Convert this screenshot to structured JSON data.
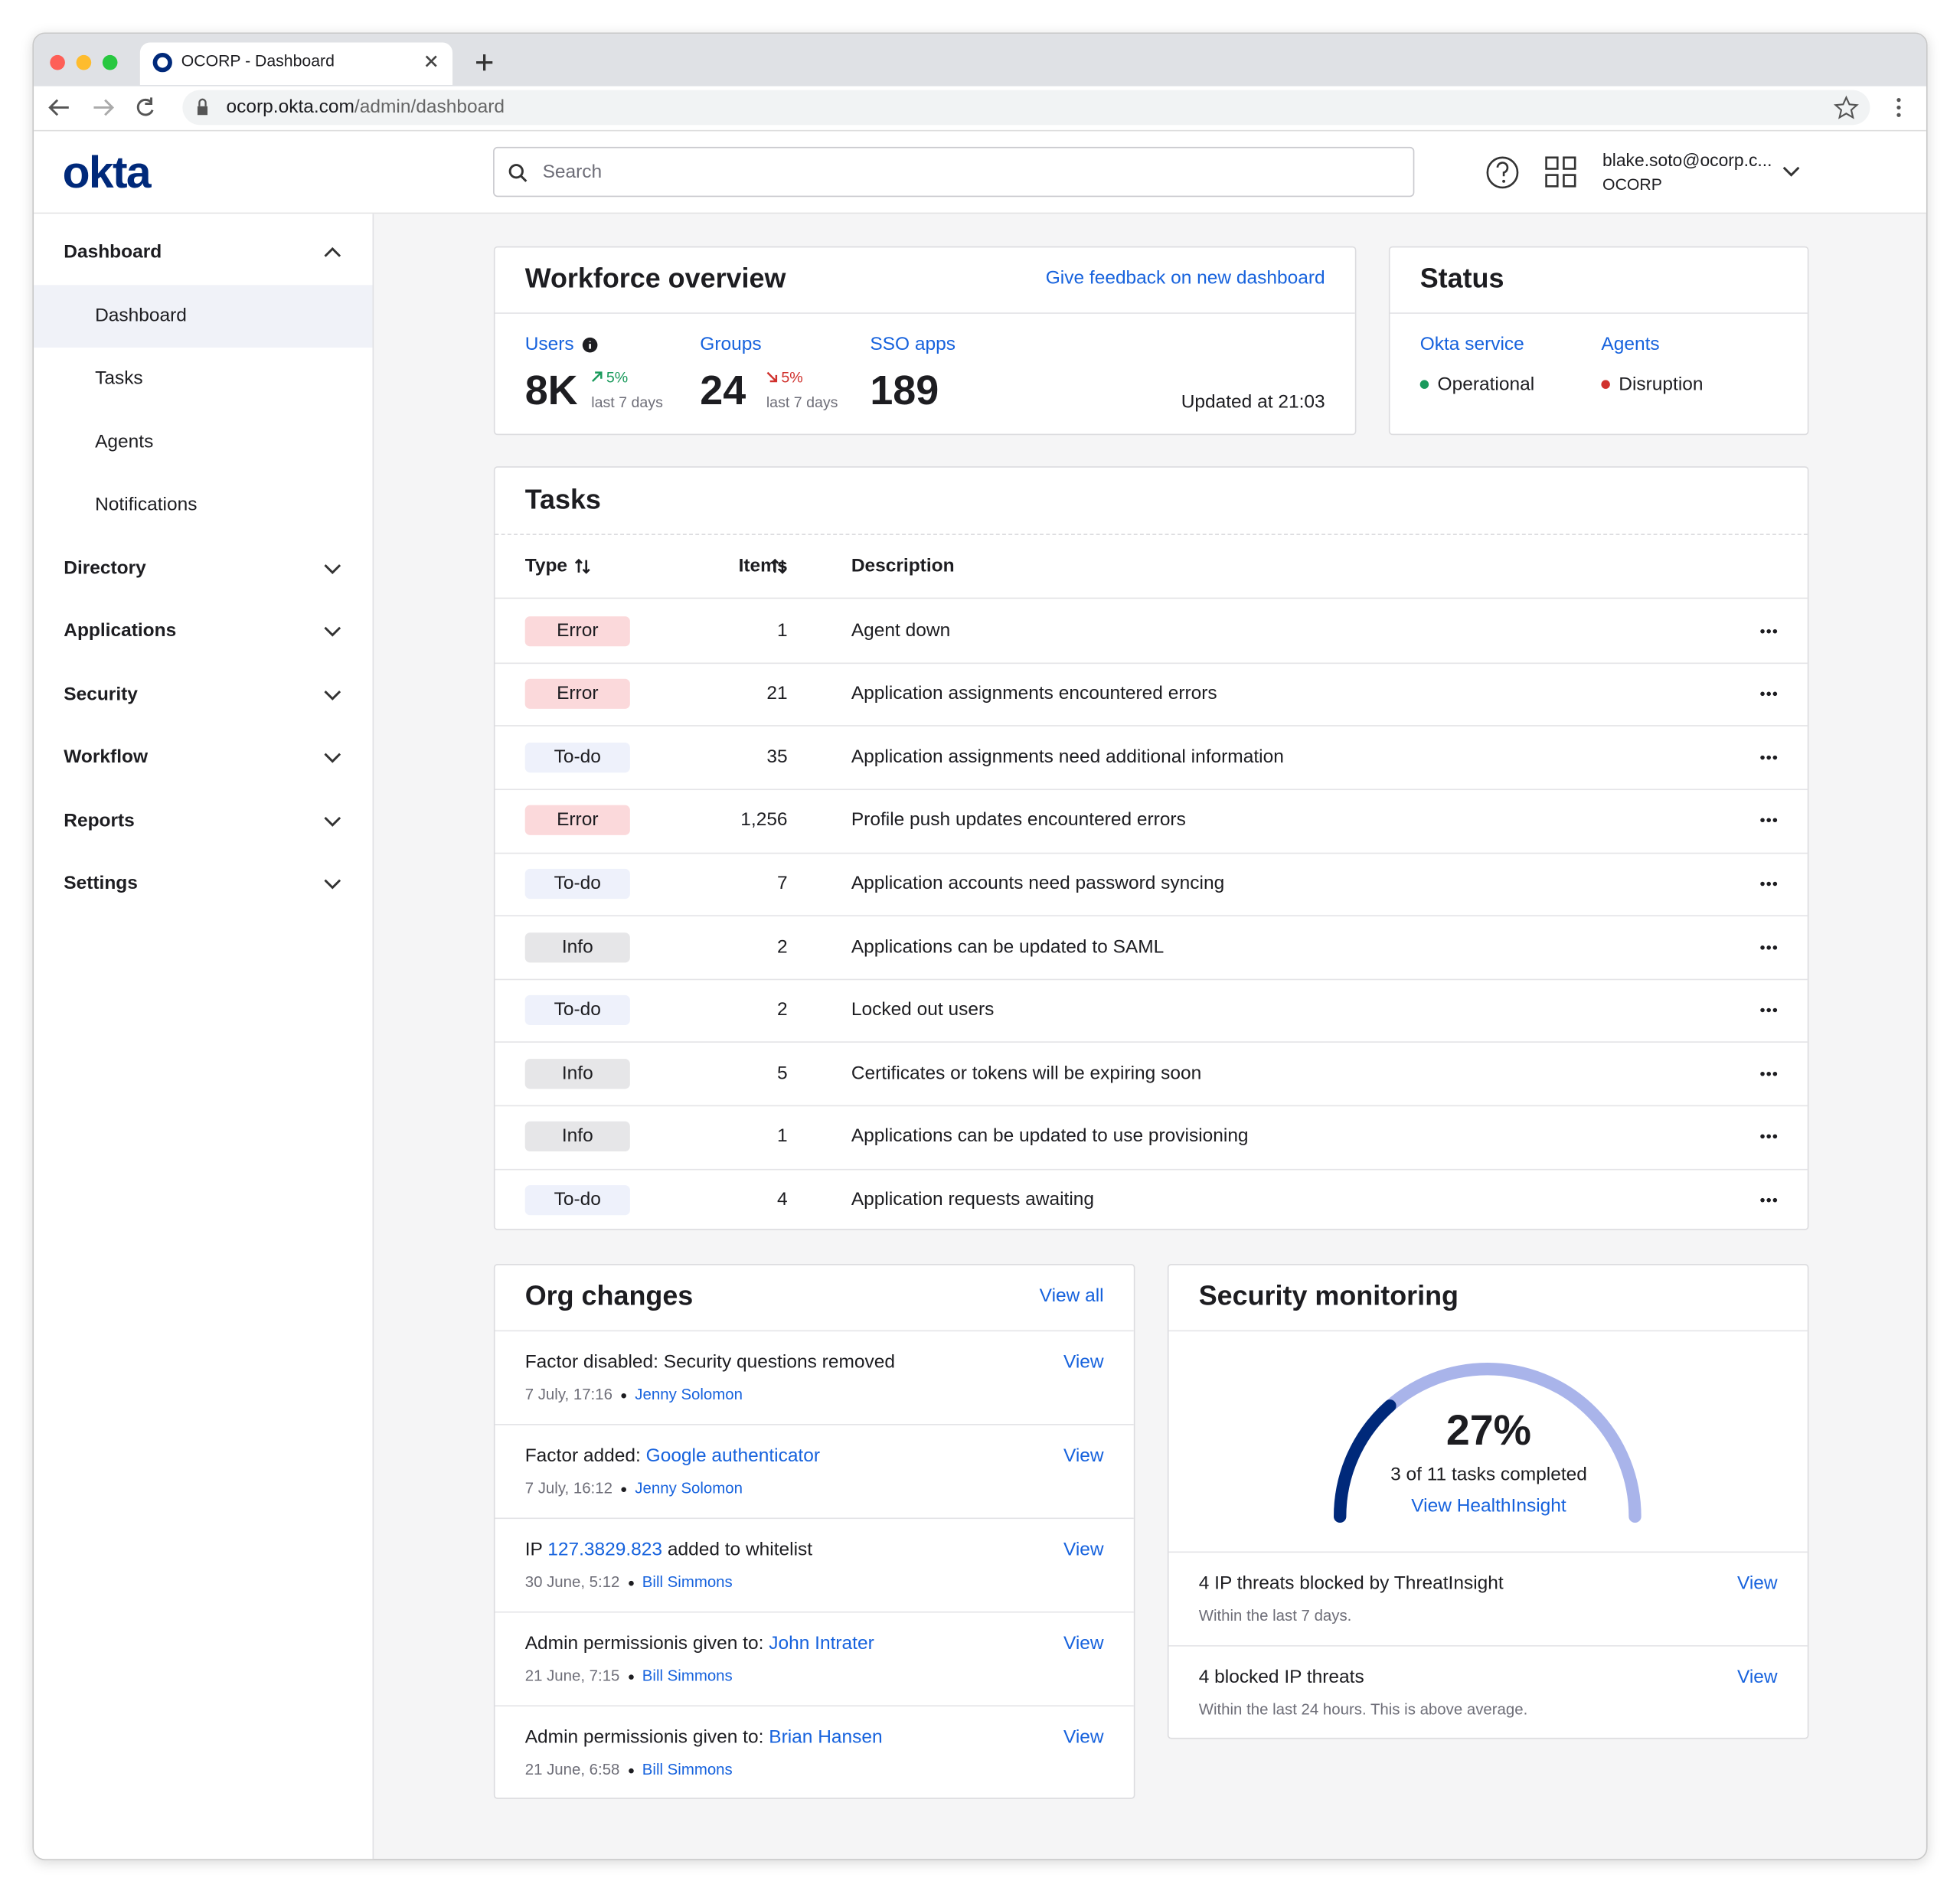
{
  "browser": {
    "tab_title": "OCORP - Dashboard",
    "url_host": "ocorp.okta.com",
    "url_path": "/admin/dashboard"
  },
  "header": {
    "logo": "okta",
    "search_placeholder": "Search",
    "user_email": "blake.soto@ocorp.c...",
    "org": "OCORP"
  },
  "sidebar": {
    "sections": [
      {
        "label": "Dashboard",
        "expanded": true,
        "children": [
          "Dashboard",
          "Tasks",
          "Agents",
          "Notifications"
        ]
      },
      {
        "label": "Directory"
      },
      {
        "label": "Applications"
      },
      {
        "label": "Security"
      },
      {
        "label": "Workflow"
      },
      {
        "label": "Reports"
      },
      {
        "label": "Settings"
      }
    ]
  },
  "workforce": {
    "title": "Workforce overview",
    "feedback_link": "Give feedback on new dashboard",
    "metrics": [
      {
        "label": "Users",
        "value": "8K",
        "change": "5%",
        "direction": "up",
        "change_color": "#1a9a5c",
        "period": "last 7 days"
      },
      {
        "label": "Groups",
        "value": "24",
        "change": "5%",
        "direction": "down",
        "change_color": "#d0312d",
        "period": "last 7 days"
      },
      {
        "label": "SSO apps",
        "value": "189"
      }
    ],
    "updated": "Updated at 21:03"
  },
  "status": {
    "title": "Status",
    "items": [
      {
        "label": "Okta service",
        "state": "Operational",
        "color": "#1a9a5c"
      },
      {
        "label": "Agents",
        "state": "Disruption",
        "color": "#d0312d"
      }
    ]
  },
  "tasks": {
    "title": "Tasks",
    "columns": [
      "Type",
      "Items",
      "Description"
    ],
    "rows": [
      {
        "type": "Error",
        "badge_color": "#fbd9db",
        "items": "1",
        "description": "Agent down"
      },
      {
        "type": "Error",
        "badge_color": "#fbd9db",
        "items": "21",
        "description": "Application assignments encountered errors"
      },
      {
        "type": "To-do",
        "badge_color": "#eef1fb",
        "items": "35",
        "description": "Application assignments need additional information"
      },
      {
        "type": "Error",
        "badge_color": "#fbd9db",
        "items": "1,256",
        "description": "Profile push updates encountered errors"
      },
      {
        "type": "To-do",
        "badge_color": "#eef1fb",
        "items": "7",
        "description": "Application accounts need password syncing"
      },
      {
        "type": "Info",
        "badge_color": "#e6e6e8",
        "items": "2",
        "description": "Applications can be updated to SAML"
      },
      {
        "type": "To-do",
        "badge_color": "#eef1fb",
        "items": "2",
        "description": "Locked out users"
      },
      {
        "type": "Info",
        "badge_color": "#e6e6e8",
        "items": "5",
        "description": "Certificates or tokens will be expiring soon"
      },
      {
        "type": "Info",
        "badge_color": "#e6e6e8",
        "items": "1",
        "description": "Applications can be updated to use provisioning"
      },
      {
        "type": "To-do",
        "badge_color": "#eef1fb",
        "items": "4",
        "description": "Application requests awaiting"
      }
    ]
  },
  "org_changes": {
    "title": "Org changes",
    "view_all": "View all",
    "entries": [
      {
        "prefix": "Factor disabled: Security questions removed",
        "date": "7 July, 17:16",
        "author": "Jenny Solomon",
        "action": "View"
      },
      {
        "prefix": "Factor added: ",
        "link": "Google authenticator",
        "date": "7 July, 16:12",
        "author": "Jenny Solomon",
        "action": "View"
      },
      {
        "prefix": "IP ",
        "link": "127.3829.823",
        "suffix": " added to whitelist",
        "date": "30 June, 5:12",
        "author": "Bill Simmons",
        "action": "View"
      },
      {
        "prefix": "Admin permissionis given to: ",
        "link": "John Intrater",
        "date": "21 June, 7:15",
        "author": "Bill Simmons",
        "action": "View"
      },
      {
        "prefix": "Admin permissionis given to: ",
        "link": "Brian Hansen",
        "date": "21 June, 6:58",
        "author": "Bill Simmons",
        "action": "View"
      }
    ]
  },
  "security": {
    "title": "Security monitoring",
    "gauge": {
      "value": 27,
      "label": "27%",
      "max": 100,
      "color": "#00297a",
      "track_color": "#a9b4ea"
    },
    "caption": "3 of 11 tasks completed",
    "link": "View HealthInsight",
    "items": [
      {
        "title": "4 IP threats blocked by ThreatInsight",
        "note": "Within the last 7 days.",
        "action": "View"
      },
      {
        "title": "4 blocked IP threats",
        "note": "Within the last 24 hours. This is above average.",
        "action": "View"
      }
    ]
  }
}
